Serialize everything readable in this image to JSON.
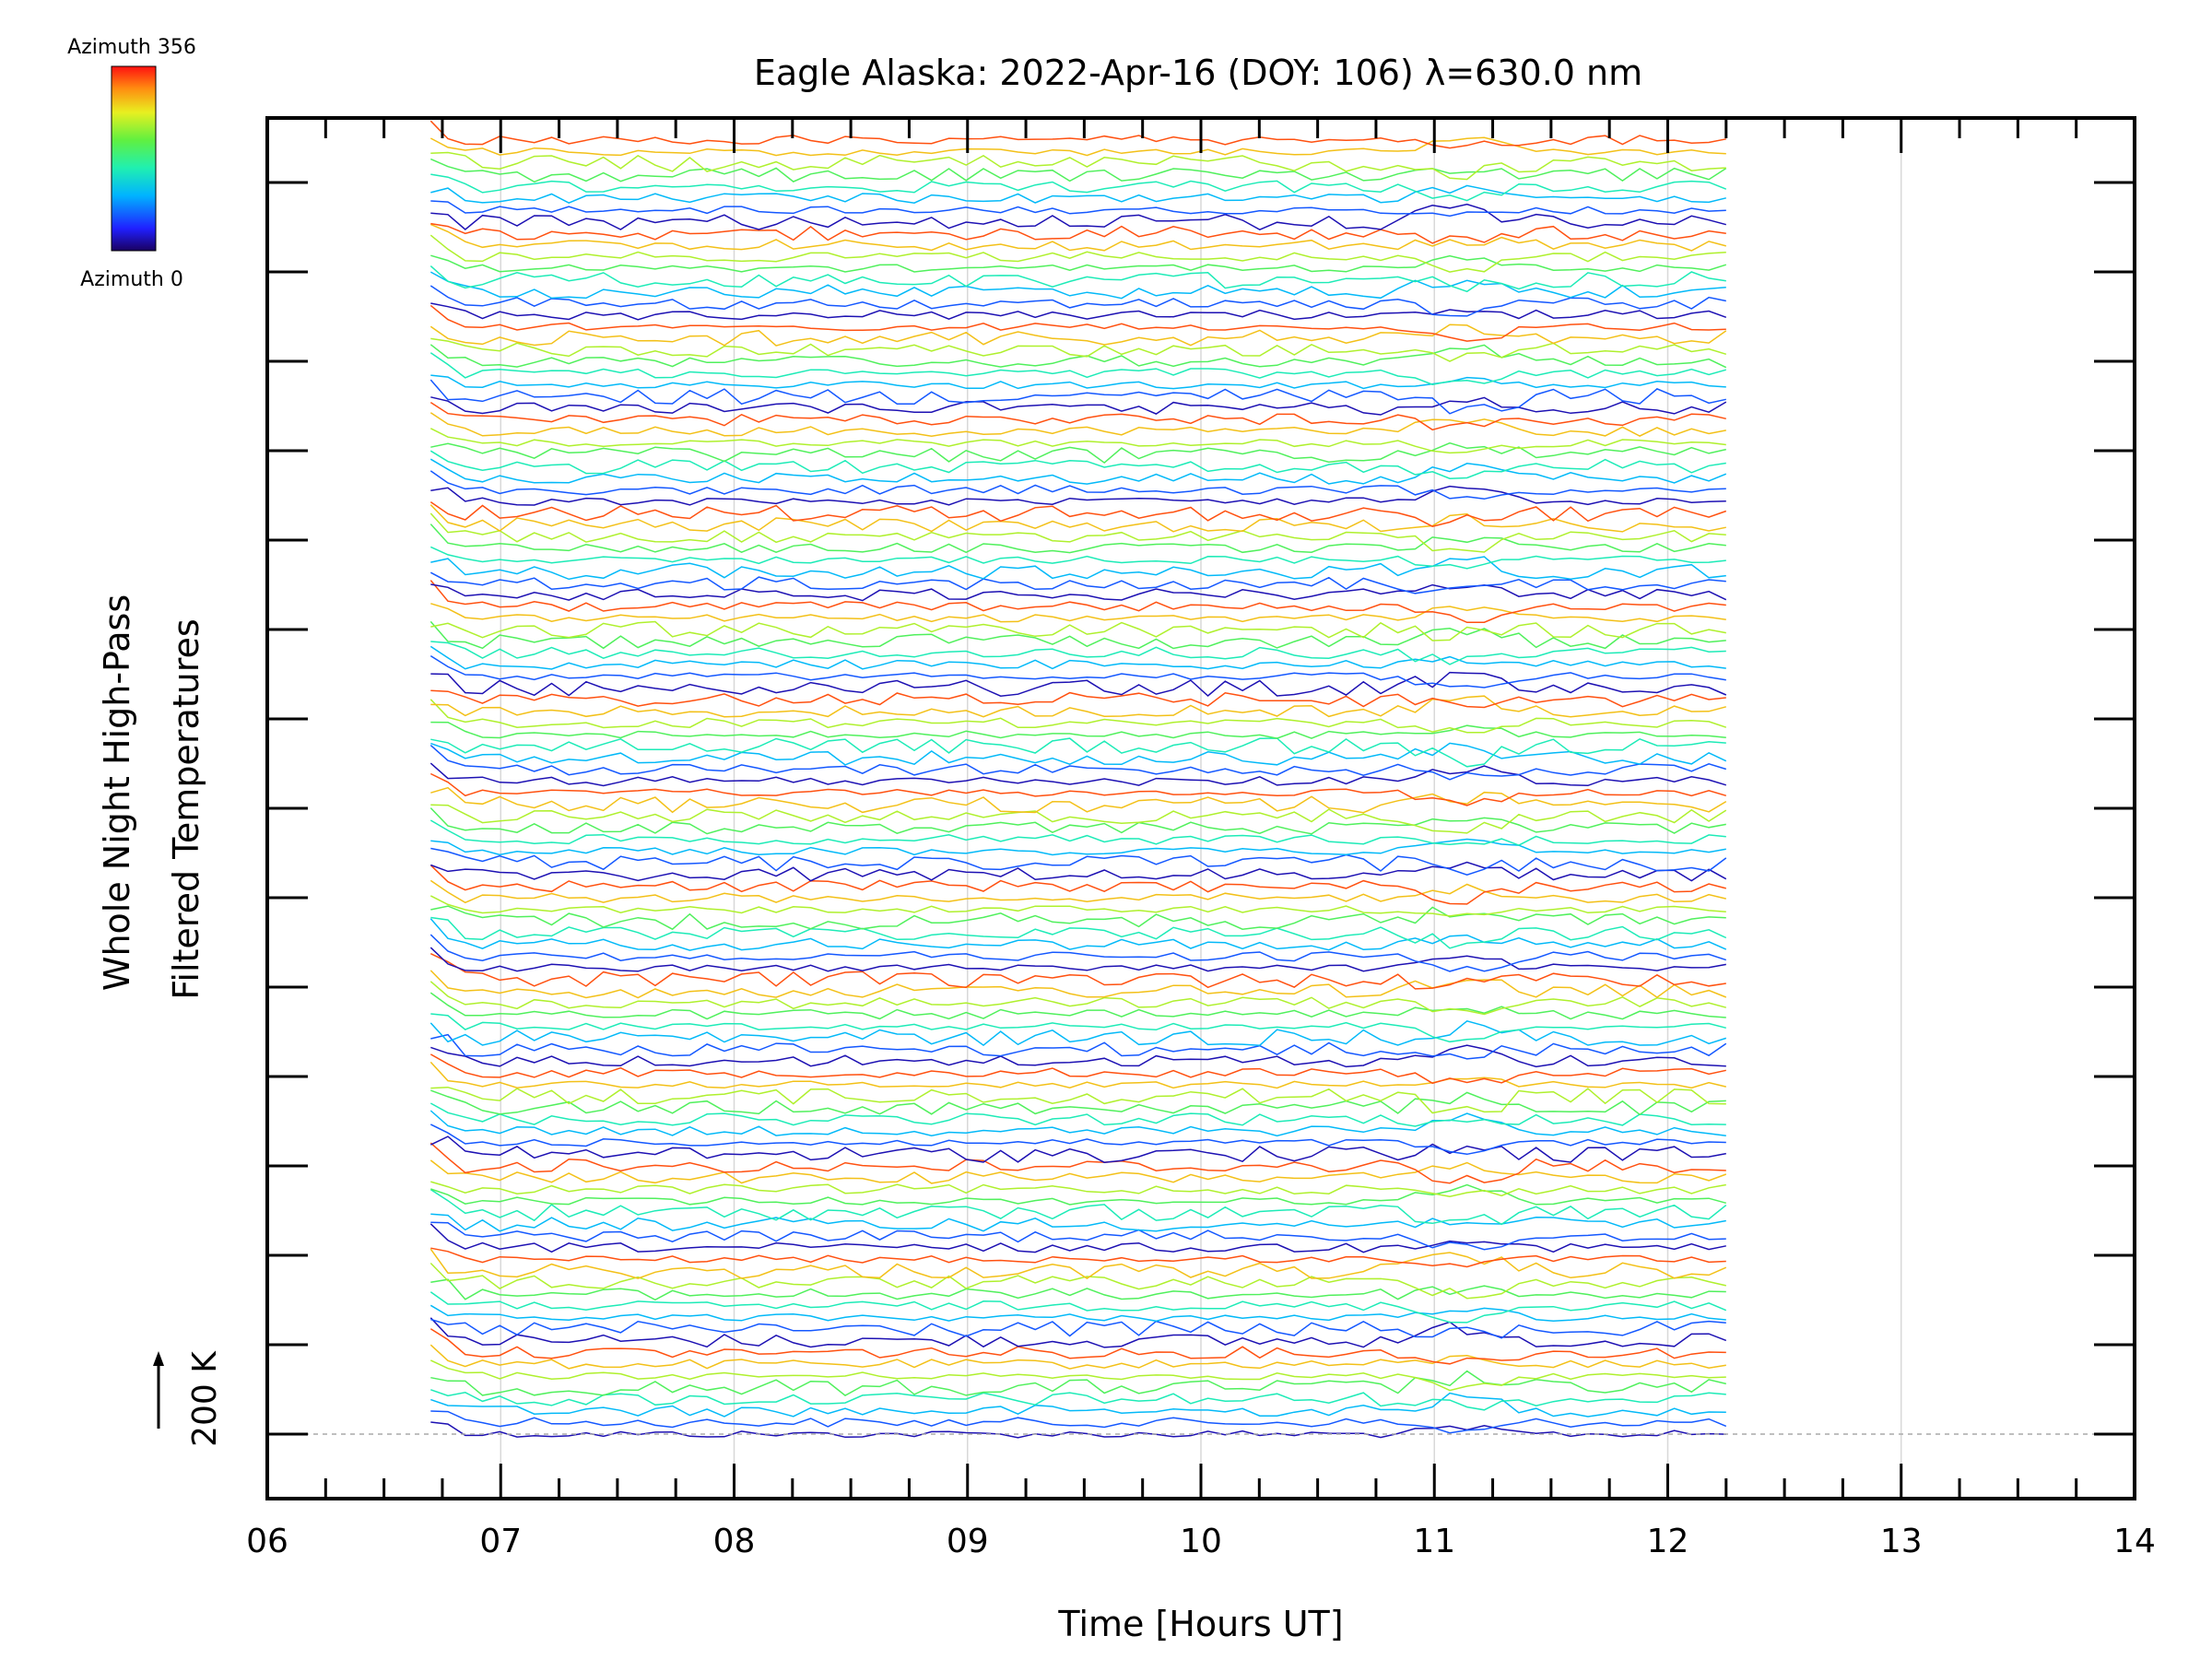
{
  "chart_data": {
    "type": "line",
    "title": "Eagle Alaska: 2022-Apr-16 (DOY: 106) λ=630.0 nm",
    "xlabel": "Time [Hours UT]",
    "ylabel_line1": "Whole Night High-Pass",
    "ylabel_line2": "Filtered Temperatures",
    "xlim": [
      6,
      14
    ],
    "x_ticks": [
      "06",
      "07",
      "08",
      "09",
      "10",
      "11",
      "12",
      "13",
      "14"
    ],
    "x_minor_step": 0.25,
    "y_major_ticks": 15,
    "time_range": [
      6.7,
      12.25
    ],
    "series_count": 112,
    "azimuth_count": 8,
    "grid": true,
    "colorbar": {
      "top_label": "Azimuth 356",
      "bottom_label": "Azimuth 0",
      "colormap": "rainbow"
    },
    "scale": {
      "label": "200 K"
    },
    "baseline_style": "dashed"
  }
}
